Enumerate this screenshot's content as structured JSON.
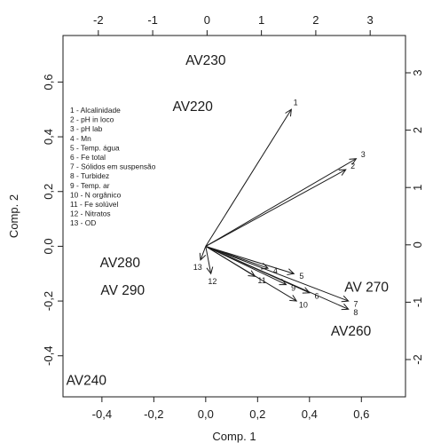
{
  "chart_data": {
    "type": "scatter",
    "title": "",
    "xlabel": "Comp. 1",
    "ylabel": "Comp. 2",
    "xlim": [
      -0.55,
      0.77
    ],
    "ylim": [
      -0.55,
      0.77
    ],
    "xticks": [
      {
        "value": -0.4,
        "label": "-0,4"
      },
      {
        "value": -0.2,
        "label": "-0,2"
      },
      {
        "value": 0.0,
        "label": "0,0"
      },
      {
        "value": 0.2,
        "label": "0,2"
      },
      {
        "value": 0.4,
        "label": "0,4"
      },
      {
        "value": 0.6,
        "label": "0,6"
      }
    ],
    "yticks": [
      {
        "value": -0.4,
        "label": "-0,4"
      },
      {
        "value": -0.2,
        "label": "-0,2"
      },
      {
        "value": 0.0,
        "label": "0,0"
      },
      {
        "value": 0.2,
        "label": "0,2"
      },
      {
        "value": 0.4,
        "label": "0,4"
      },
      {
        "value": 0.6,
        "label": "0,6"
      }
    ],
    "secondary_xlim": [
      -2.65,
      3.65
    ],
    "secondary_ylim": [
      -2.65,
      3.65
    ],
    "secondary_xticks": [
      {
        "value": -2,
        "label": "-2"
      },
      {
        "value": -1,
        "label": "-1"
      },
      {
        "value": 0,
        "label": "0"
      },
      {
        "value": 1,
        "label": "1"
      },
      {
        "value": 2,
        "label": "2"
      },
      {
        "value": 3,
        "label": "3"
      }
    ],
    "secondary_yticks": [
      {
        "value": -2,
        "label": "-2"
      },
      {
        "value": -1,
        "label": "-1"
      },
      {
        "value": 0,
        "label": "0"
      },
      {
        "value": 1,
        "label": "1"
      },
      {
        "value": 2,
        "label": "2"
      },
      {
        "value": 3,
        "label": "3"
      }
    ],
    "grid": false,
    "legend": "top-left",
    "sites": [
      {
        "label": "AV230",
        "x": 0.0,
        "y": 0.68
      },
      {
        "label": "AV220",
        "x": -0.05,
        "y": 0.51
      },
      {
        "label": "AV280",
        "x": -0.33,
        "y": -0.06
      },
      {
        "label": "AV 290",
        "x": -0.32,
        "y": -0.16
      },
      {
        "label": "AV 270",
        "x": 0.62,
        "y": -0.15
      },
      {
        "label": "AV260",
        "x": 0.56,
        "y": -0.31
      },
      {
        "label": "AV240",
        "x": -0.46,
        "y": -0.49
      }
    ],
    "loadings": [
      {
        "label": "1",
        "x": 0.33,
        "y": 0.5
      },
      {
        "label": "2",
        "x": 0.54,
        "y": 0.28
      },
      {
        "label": "3",
        "x": 0.58,
        "y": 0.32
      },
      {
        "label": "4",
        "x": 0.24,
        "y": -0.08
      },
      {
        "label": "5",
        "x": 0.34,
        "y": -0.1
      },
      {
        "label": "6",
        "x": 0.4,
        "y": -0.17
      },
      {
        "label": "7",
        "x": 0.55,
        "y": -0.2
      },
      {
        "label": "8",
        "x": 0.55,
        "y": -0.23
      },
      {
        "label": "9",
        "x": 0.31,
        "y": -0.14
      },
      {
        "label": "10",
        "x": 0.35,
        "y": -0.2
      },
      {
        "label": "11",
        "x": 0.19,
        "y": -0.11
      },
      {
        "label": "12",
        "x": 0.02,
        "y": -0.1
      },
      {
        "label": "13",
        "x": -0.02,
        "y": -0.05
      }
    ],
    "legend_entries": [
      "1 - Alcalinidade",
      "2 - pH in loco",
      "3 - pH lab",
      "4 - Mn",
      "5 - Temp. água",
      "6 - Fe total",
      "7 - Sólidos em suspensão",
      "8 - Turbidez",
      "9 - Temp. ar",
      "10 - N orgânico",
      "11 - Fe solúvel",
      "12 - Nitratos",
      "13 - OD"
    ],
    "colors": {
      "ink": "#1a1a1a",
      "background": "#ffffff"
    }
  }
}
